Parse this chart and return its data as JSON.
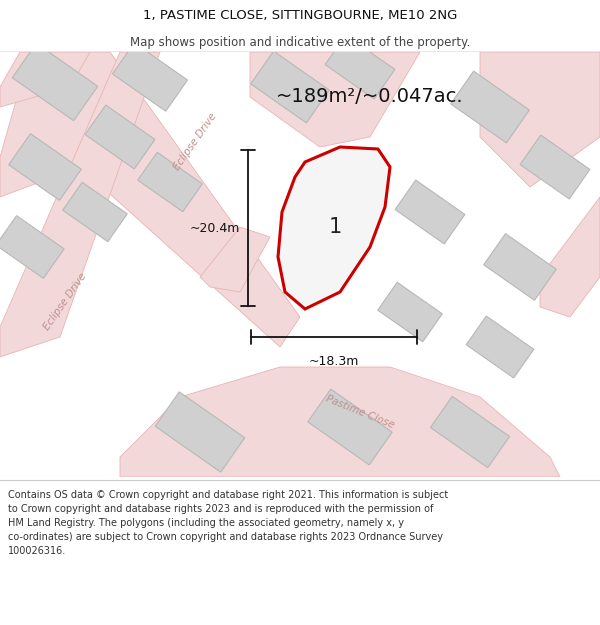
{
  "title_line1": "1, PASTIME CLOSE, SITTINGBOURNE, ME10 2NG",
  "title_line2": "Map shows position and indicative extent of the property.",
  "area_text": "~189m²/~0.047ac.",
  "dim_width": "~18.3m",
  "dim_height": "~20.4m",
  "plot_label": "1",
  "footer_text": "Contains OS data © Crown copyright and database right 2021. This information is subject to Crown copyright and database rights 2023 and is reproduced with the permission of HM Land Registry. The polygons (including the associated geometry, namely x, y co-ordinates) are subject to Crown copyright and database rights 2023 Ordnance Survey 100026316.",
  "map_bg": "#ebebeb",
  "road_color": "#e8b4b4",
  "road_fill": "#f2d8d8",
  "building_color": "#d0d0d0",
  "building_edge": "#b8b8b8",
  "plot_color": "#cc0000",
  "dim_line_color": "#111111",
  "road_label_color": "#c09090",
  "header_bg": "#ffffff",
  "footer_bg": "#ffffff",
  "text_color": "#222222"
}
